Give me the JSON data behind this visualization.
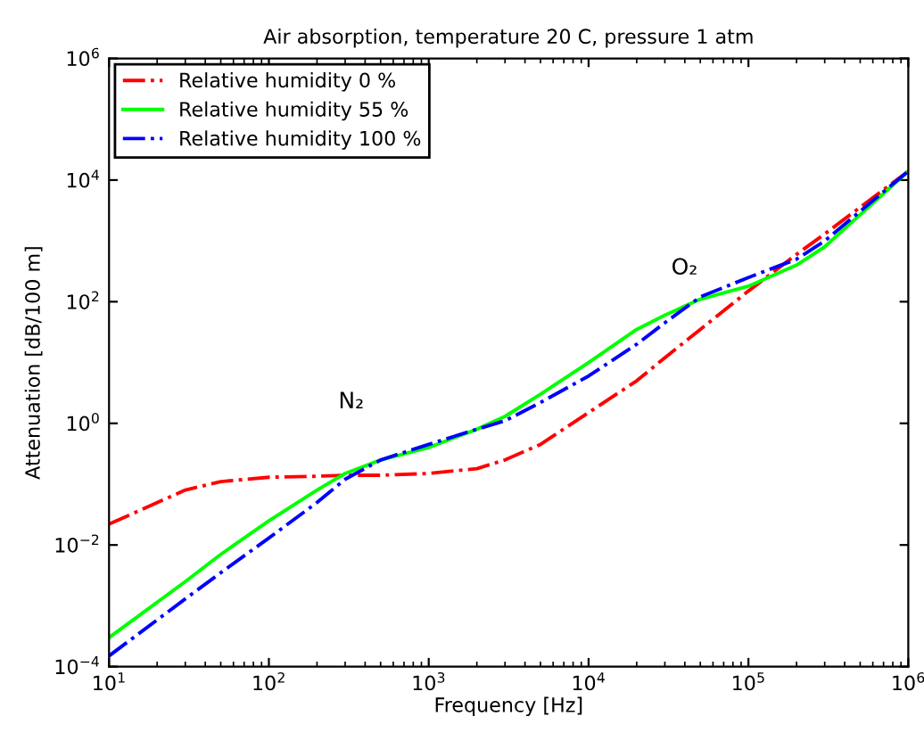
{
  "chart_data": {
    "type": "line",
    "title": "Air absorption, temperature 20 C, pressure 1 atm",
    "xlabel": "Frequency [Hz]",
    "ylabel": "Attenuation [dB/100 m]",
    "log": "xy",
    "grid": false,
    "legend": "top left",
    "marker": "none",
    "xlim": [
      10,
      1000000
    ],
    "ylim": [
      0.0001,
      1000000
    ],
    "xticks": [
      {
        "value": 10,
        "label": "10$^{1}$"
      },
      {
        "value": 100,
        "label": "10$^{2}$"
      },
      {
        "value": 1000,
        "label": "10$^{3}$"
      },
      {
        "value": 10000,
        "label": "10$^{4}$"
      },
      {
        "value": 100000,
        "label": "10$^{5}$"
      },
      {
        "value": 1000000,
        "label": "10$^{6}$"
      }
    ],
    "yticks": [
      {
        "value": 0.0001,
        "label": "10$^{−4}$"
      },
      {
        "value": 0.01,
        "label": "10$^{−2}$"
      },
      {
        "value": 1,
        "label": "10$^{0}$"
      },
      {
        "value": 100,
        "label": "10$^{2}$"
      },
      {
        "value": 10000,
        "label": "10$^{4}$"
      },
      {
        "value": 1000000,
        "label": "10$^{6}$"
      }
    ],
    "x": [
      10,
      30,
      50,
      100,
      200,
      300,
      500,
      1000,
      2000,
      3000,
      5000,
      10000,
      20000,
      30000,
      50000,
      100000,
      200000,
      300000,
      1000000
    ],
    "series": [
      {
        "name": "Relative humidity 0 %",
        "color": "#ff0000",
        "line_style": "dashdot",
        "values": [
          0.022,
          0.08,
          0.11,
          0.13,
          0.135,
          0.14,
          0.14,
          0.15,
          0.18,
          0.25,
          0.45,
          1.5,
          5,
          12,
          35,
          150,
          600,
          1300,
          14000
        ]
      },
      {
        "name": "Relative humidity 55 %",
        "color": "#00ff00",
        "line_style": "solid",
        "values": [
          0.0003,
          0.0025,
          0.007,
          0.025,
          0.08,
          0.15,
          0.25,
          0.4,
          0.8,
          1.3,
          3,
          10,
          35,
          60,
          110,
          180,
          400,
          800,
          14000
        ]
      },
      {
        "name": "Relative humidity 100 %",
        "color": "#0000ff",
        "line_style": "dashdot",
        "values": [
          0.00015,
          0.0013,
          0.0035,
          0.013,
          0.05,
          0.12,
          0.25,
          0.45,
          0.8,
          1.1,
          2.2,
          6,
          20,
          45,
          120,
          250,
          500,
          1000,
          14000
        ]
      }
    ],
    "annotations": [
      "N₂",
      "O₂"
    ]
  }
}
